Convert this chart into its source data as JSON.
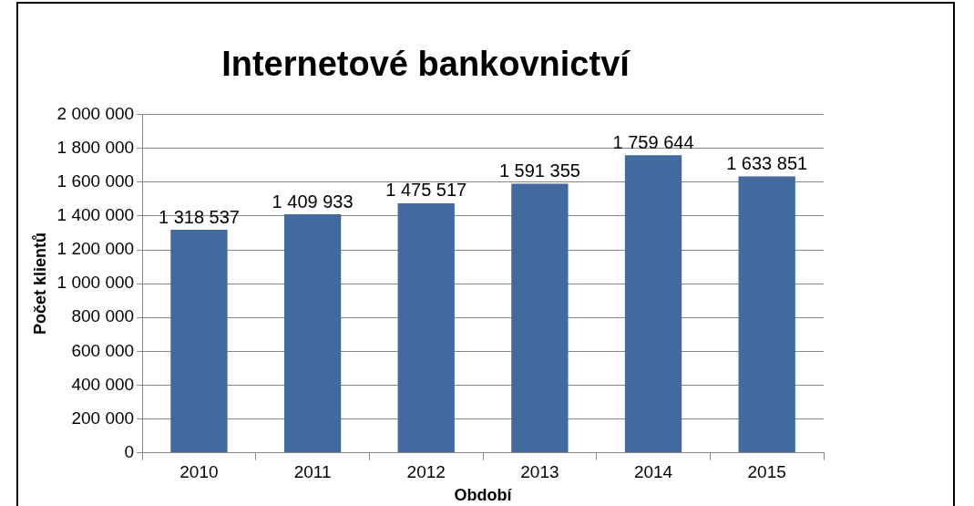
{
  "chart_data": {
    "type": "bar",
    "title": "Internetové bankovnictví",
    "xlabel": "Období",
    "ylabel": "Počet klientů",
    "categories": [
      "2010",
      "2011",
      "2012",
      "2013",
      "2014",
      "2015"
    ],
    "values": [
      1318537,
      1409933,
      1475517,
      1591355,
      1759644,
      1633851
    ],
    "color": "#426a9e",
    "ylim": [
      0,
      2000000
    ],
    "yticks": [
      0,
      200000,
      400000,
      600000,
      800000,
      1000000,
      1200000,
      1400000,
      1600000,
      1800000,
      2000000
    ],
    "grid": "y",
    "legend": false,
    "data_labels": true
  }
}
